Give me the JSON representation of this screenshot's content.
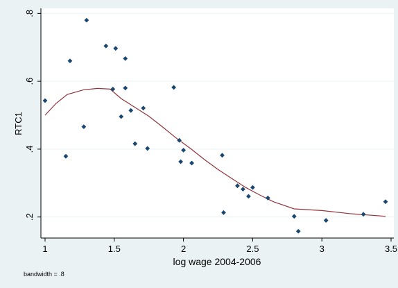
{
  "chart_data": {
    "type": "scatter",
    "xlabel": "log wage 2004-2006",
    "ylabel": "RTC1",
    "note": "bandwidth = .8",
    "xlim": [
      0.97,
      3.52
    ],
    "ylim": [
      0.138,
      0.815
    ],
    "xticks": [
      1,
      1.5,
      2,
      2.5,
      3,
      3.5
    ],
    "xtick_labels": [
      "1",
      "1.5",
      "2",
      "2.5",
      "3",
      "3.5"
    ],
    "yticks": [
      0.2,
      0.4,
      0.6,
      0.8
    ],
    "ytick_labels": [
      ".2",
      ".4",
      ".6",
      ".8"
    ],
    "grid": "horizontal",
    "colors": {
      "points": "#1a476f",
      "smooth_line": "#90353b",
      "plot_bg": "#ffffff",
      "page_bg": "#eaf2f3",
      "grid": "#eaf2f3"
    },
    "series": [
      {
        "type": "scatter",
        "points": [
          [
            1.0,
            0.543
          ],
          [
            1.15,
            0.379
          ],
          [
            1.18,
            0.66
          ],
          [
            1.28,
            0.466
          ],
          [
            1.3,
            0.78
          ],
          [
            1.44,
            0.704
          ],
          [
            1.49,
            0.577
          ],
          [
            1.51,
            0.697
          ],
          [
            1.55,
            0.496
          ],
          [
            1.58,
            0.667
          ],
          [
            1.58,
            0.58
          ],
          [
            1.62,
            0.514
          ],
          [
            1.65,
            0.416
          ],
          [
            1.71,
            0.521
          ],
          [
            1.74,
            0.402
          ],
          [
            1.93,
            0.582
          ],
          [
            1.97,
            0.426
          ],
          [
            1.98,
            0.363
          ],
          [
            2.0,
            0.397
          ],
          [
            2.06,
            0.359
          ],
          [
            2.28,
            0.382
          ],
          [
            2.29,
            0.213
          ],
          [
            2.39,
            0.292
          ],
          [
            2.43,
            0.282
          ],
          [
            2.47,
            0.261
          ],
          [
            2.5,
            0.287
          ],
          [
            2.61,
            0.256
          ],
          [
            2.8,
            0.202
          ],
          [
            2.83,
            0.158
          ],
          [
            3.03,
            0.19
          ],
          [
            3.3,
            0.208
          ],
          [
            3.46,
            0.245
          ]
        ]
      },
      {
        "type": "line",
        "points": [
          [
            1.0,
            0.5
          ],
          [
            1.08,
            0.535
          ],
          [
            1.16,
            0.561
          ],
          [
            1.28,
            0.575
          ],
          [
            1.38,
            0.579
          ],
          [
            1.47,
            0.577
          ],
          [
            1.55,
            0.549
          ],
          [
            1.65,
            0.523
          ],
          [
            1.75,
            0.497
          ],
          [
            1.85,
            0.465
          ],
          [
            1.95,
            0.432
          ],
          [
            2.05,
            0.402
          ],
          [
            2.15,
            0.37
          ],
          [
            2.25,
            0.34
          ],
          [
            2.35,
            0.313
          ],
          [
            2.45,
            0.287
          ],
          [
            2.55,
            0.265
          ],
          [
            2.65,
            0.245
          ],
          [
            2.8,
            0.224
          ],
          [
            3.0,
            0.219
          ],
          [
            3.2,
            0.21
          ],
          [
            3.46,
            0.202
          ]
        ]
      }
    ]
  }
}
